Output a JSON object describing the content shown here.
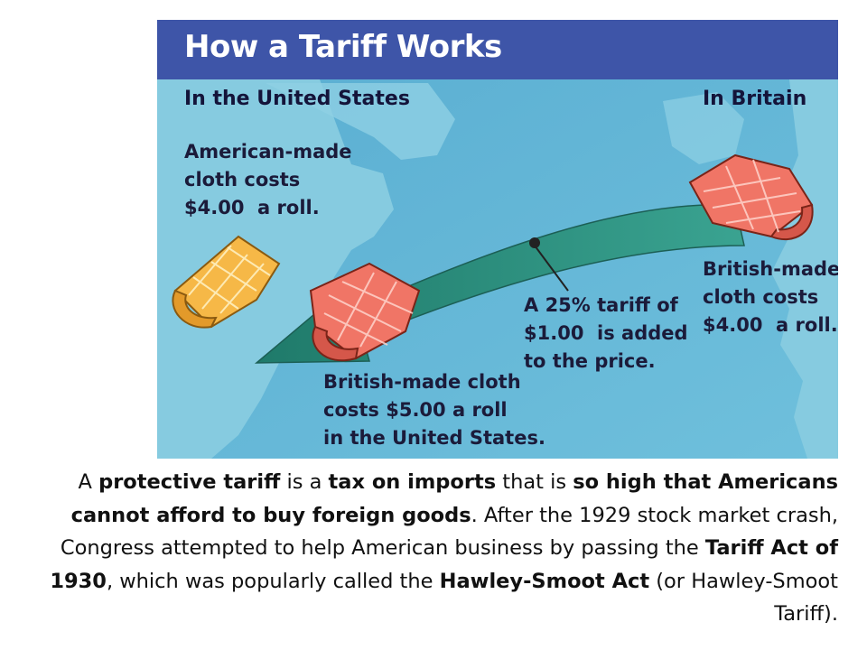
{
  "figure": {
    "title": "How a Tariff Works",
    "us_header": "In the United States",
    "britain_header": "In Britain",
    "american_cloth": "American-made\ncloth costs\n$4.00  a roll.",
    "british_cloth_britain": "British-made\ncloth costs\n$4.00  a roll.",
    "tariff_note": "A 25% tariff of\n$1.00  is added\nto the price.",
    "british_cloth_us": "British-made cloth\ncosts $5.00 a roll\nin the United States.",
    "colors": {
      "title_bar": "#3e55a8",
      "ocean": "#67b3d3",
      "land": "#7fc5de",
      "arrow": "#2f8f7e",
      "american_cloth": "#f2a93b",
      "british_cloth": "#ef6b5f"
    }
  },
  "caption": {
    "parts": [
      {
        "text": "A ",
        "bold": false
      },
      {
        "text": "protective tariff",
        "bold": true
      },
      {
        "text": " is a ",
        "bold": false
      },
      {
        "text": "tax on imports",
        "bold": true
      },
      {
        "text": " that is ",
        "bold": false
      },
      {
        "text": "so high that Americans cannot afford to buy foreign goods",
        "bold": true
      },
      {
        "text": ".  After the 1929 stock market crash, Congress attempted to help American business by passing the ",
        "bold": false
      },
      {
        "text": "Tariff Act of 1930",
        "bold": true
      },
      {
        "text": ", which was popularly called the ",
        "bold": false
      },
      {
        "text": "Hawley-Smoot Act",
        "bold": true
      },
      {
        "text": " (or Hawley-Smoot Tariff).",
        "bold": false
      }
    ]
  }
}
